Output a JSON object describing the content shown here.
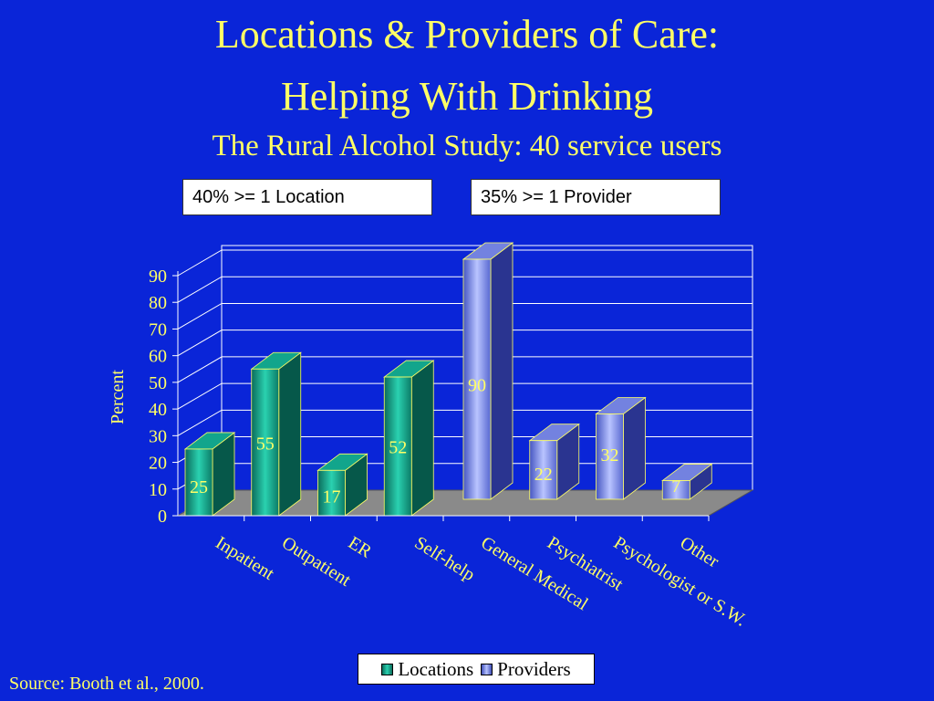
{
  "title_line1": "Locations & Providers of Care:",
  "title_line2": "Helping With Drinking",
  "subtitle": "The Rural Alcohol Study: 40 service users",
  "notes": {
    "location": "40% >= 1 Location",
    "provider": "35% >= 1 Provider"
  },
  "source": "Source: Booth et al., 2000.",
  "chart_data": {
    "type": "bar",
    "ylabel": "Percent",
    "ylim": [
      0,
      90
    ],
    "yticks": [
      0,
      10,
      20,
      30,
      40,
      50,
      60,
      70,
      80,
      90
    ],
    "categories": [
      "Inpatient",
      "Outpatient",
      "ER",
      "Self-help",
      "General Medical",
      "Psychiatrist",
      "Psychologist or S.W.",
      "Other"
    ],
    "series": [
      {
        "name": "Locations",
        "values": [
          25,
          55,
          17,
          52,
          null,
          null,
          null,
          null
        ],
        "color": "#16a88e"
      },
      {
        "name": "Providers",
        "values": [
          null,
          null,
          null,
          null,
          90,
          22,
          32,
          7
        ],
        "color": "#8a98f0"
      }
    ],
    "legend_position": "bottom",
    "grid": true,
    "colors": {
      "background": "#0a25d8",
      "text": "#ffff66",
      "floor": "#8a8a8a",
      "grid": "#ffffff"
    }
  }
}
